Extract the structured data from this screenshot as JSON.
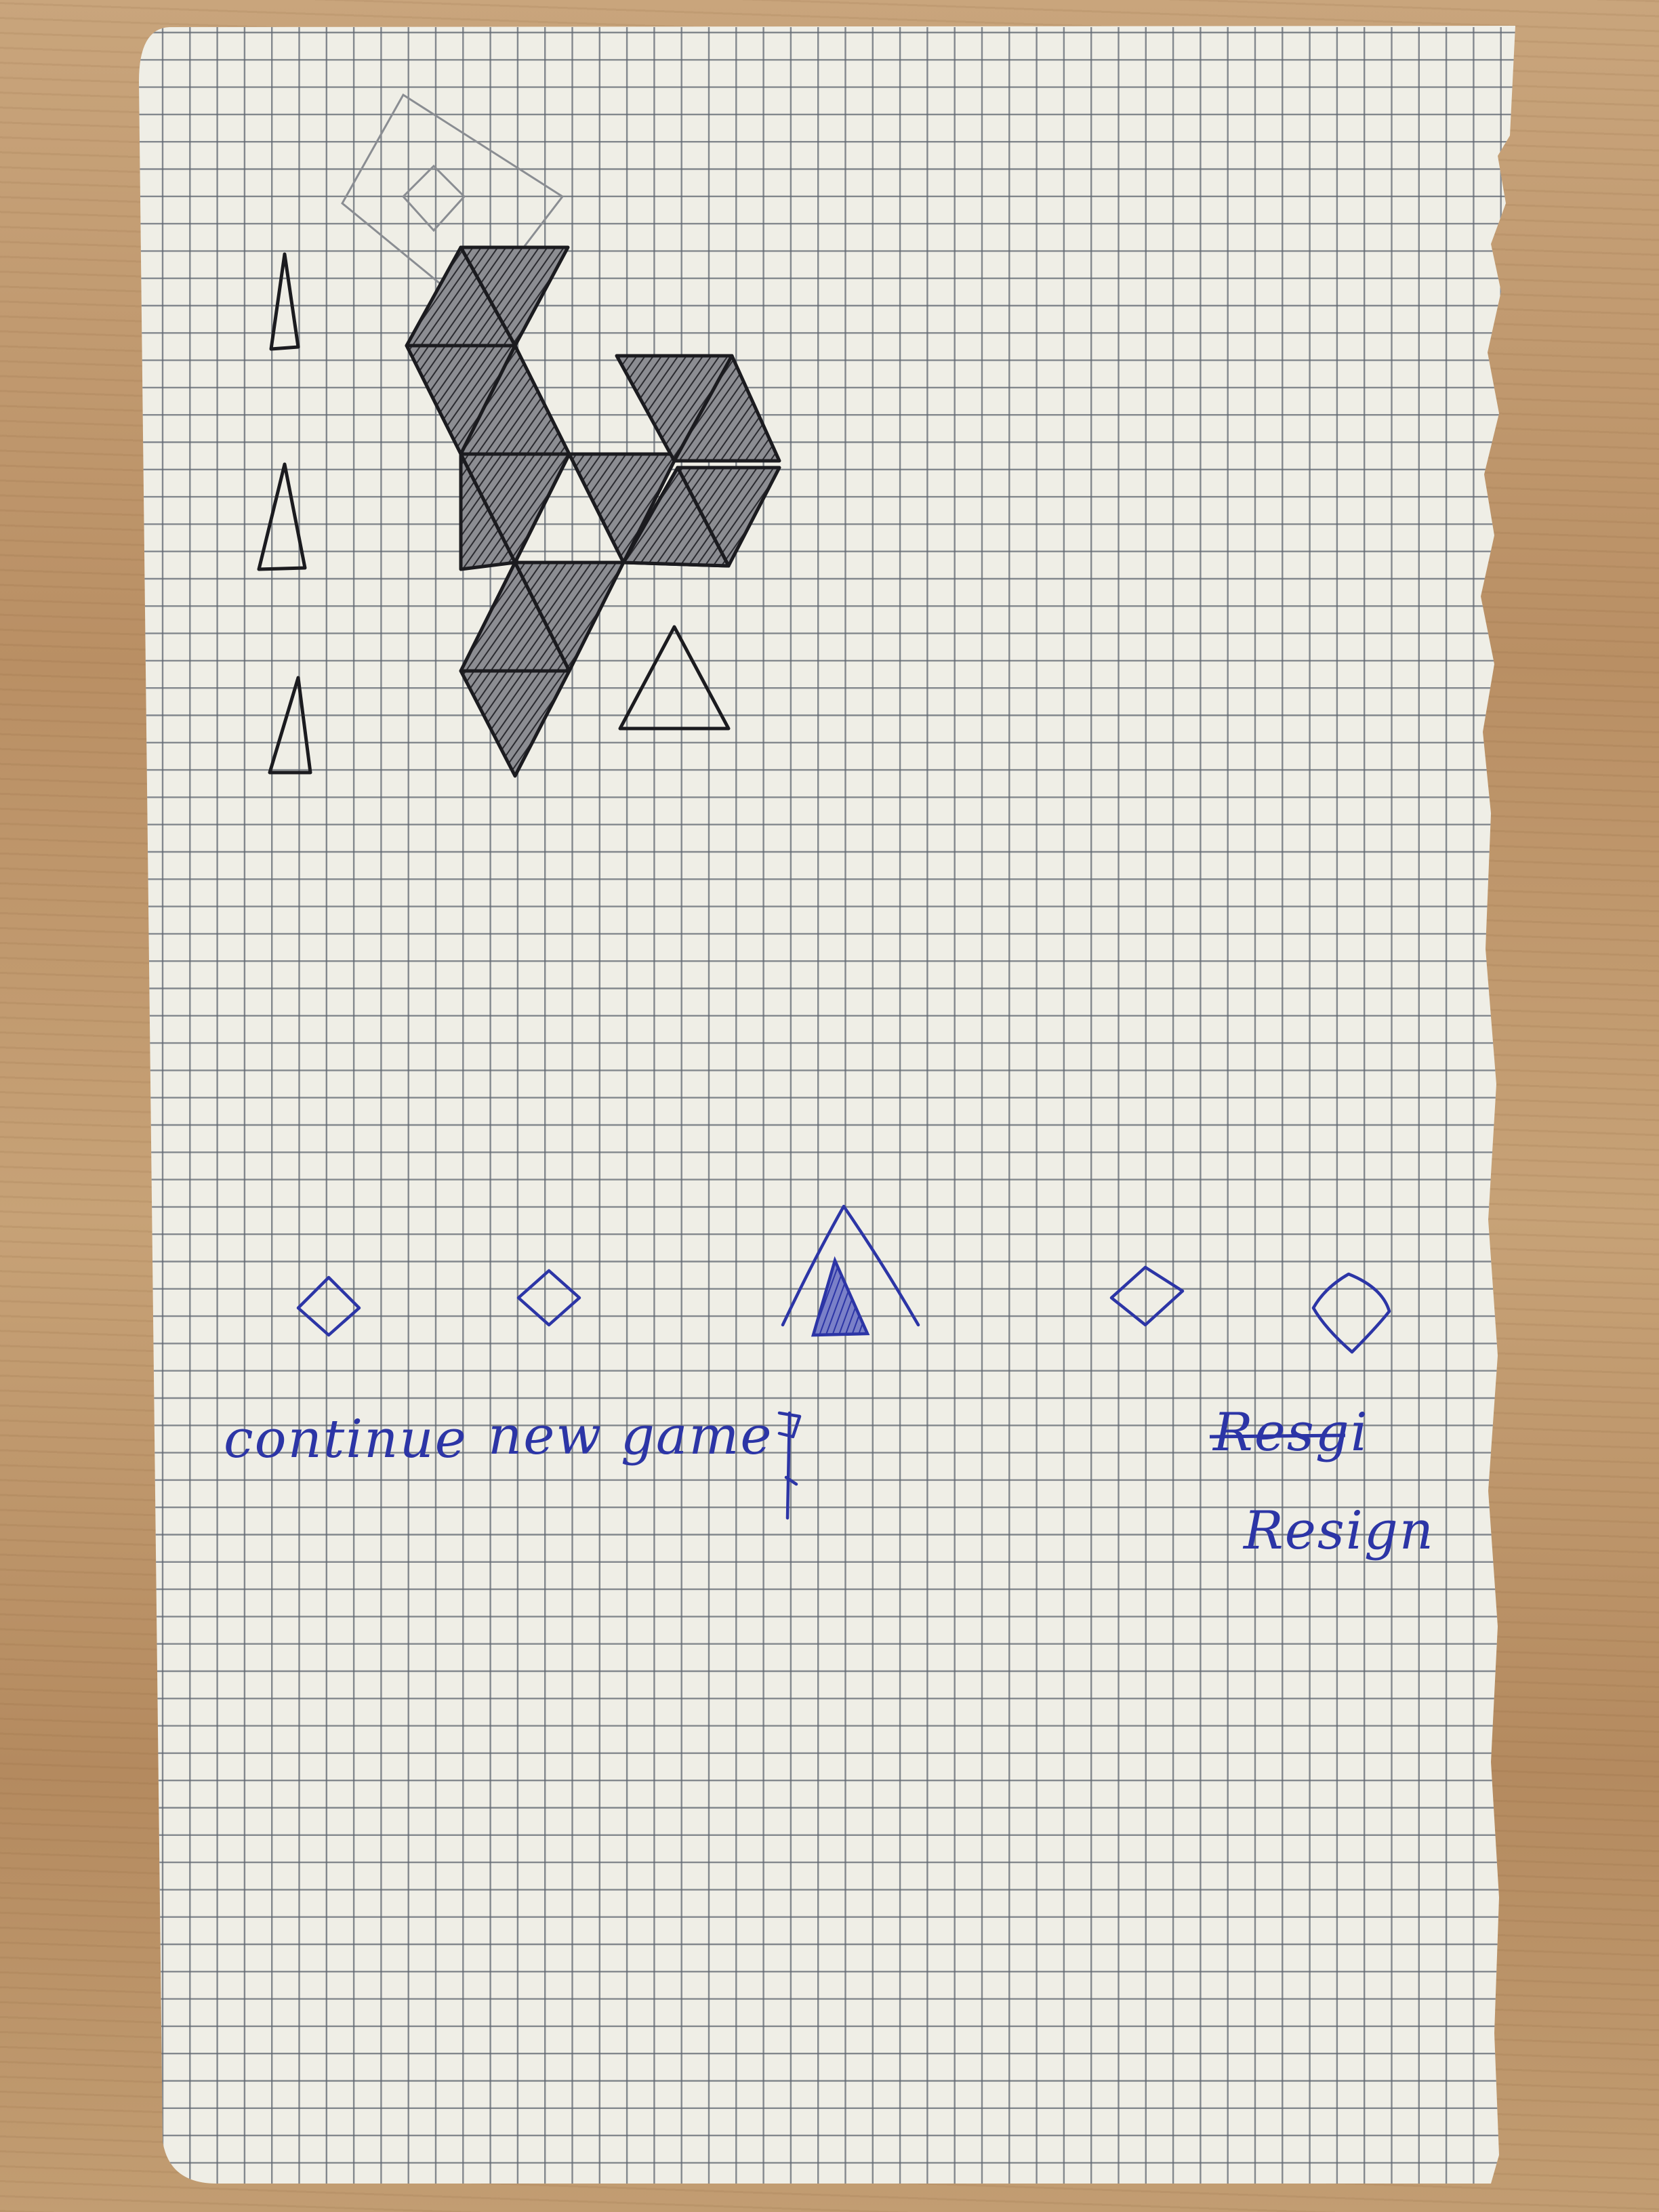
{
  "colors": {
    "table_wood": "#c29d72",
    "paper": "#efeee6",
    "grid": "#5f6670",
    "black_ink": "#1b1b1f",
    "blue_ink": "#2c35a6",
    "pencil": "#8a8d92"
  },
  "menu": {
    "continue_label": "continue",
    "new_game_label": "new game",
    "resign_struck_label": "Resgi",
    "resign_label": "Resign"
  },
  "icons": {
    "continue": "diamond-icon",
    "new_game": "diamond-icon",
    "center": "triangle-icon",
    "fourth": "diamond-icon",
    "resign": "diamond-icon",
    "status_markers": "triangle-icon"
  }
}
